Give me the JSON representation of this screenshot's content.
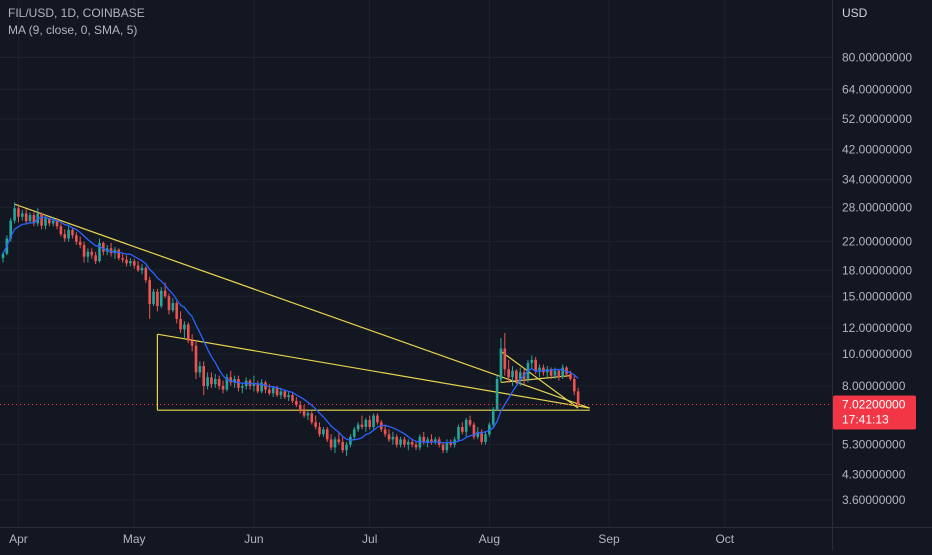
{
  "legend": {
    "symbol_line": "FIL/USD, 1D, COINBASE",
    "indicator_line": "MA (9, close, 0, SMA, 5)"
  },
  "price_axis": {
    "unit": "USD",
    "ticks": [
      "80.00000000",
      "64.00000000",
      "52.00000000",
      "42.00000000",
      "34.00000000",
      "28.00000000",
      "22.00000000",
      "18.00000000",
      "15.00000000",
      "12.00000000",
      "10.00000000",
      "8.00000000",
      "5.30000000",
      "4.30000000",
      "3.60000000"
    ]
  },
  "time_axis": {
    "ticks": [
      "Apr",
      "May",
      "Jun",
      "Jul",
      "Aug",
      "Sep",
      "Oct"
    ]
  },
  "current_price": {
    "value": "7.02200000",
    "countdown": "17:41:13",
    "color": "#f23645"
  },
  "colors": {
    "background": "#131722",
    "up": "#26a69a",
    "down": "#ef5350",
    "ma": "#2962ff",
    "trendline": "#e8d44d",
    "grid": "#1e222d"
  },
  "chart_data": {
    "type": "candlestick",
    "symbol": "FIL/USD",
    "interval": "1D",
    "exchange": "COINBASE",
    "y_scale": "log",
    "ylim": [
      3.4,
      95
    ],
    "xlim": [
      "2021-03-28",
      "2021-10-12"
    ],
    "grid": true,
    "legend_position": "top-left",
    "indicator": {
      "name": "MA (9, close, 0, SMA, 5)",
      "color": "#2962ff"
    },
    "candles": [
      [
        "2021-03-28",
        19.6,
        20.5,
        19.0,
        20.2
      ],
      [
        "2021-03-29",
        20.2,
        23.0,
        20.0,
        22.5
      ],
      [
        "2021-03-30",
        22.5,
        26.0,
        22.0,
        25.5
      ],
      [
        "2021-03-31",
        25.5,
        29.0,
        25.0,
        27.8
      ],
      [
        "2021-04-01",
        27.8,
        28.6,
        25.2,
        26.2
      ],
      [
        "2021-04-02",
        26.2,
        27.5,
        25.5,
        26.8
      ],
      [
        "2021-04-03",
        26.8,
        27.6,
        25.0,
        25.4
      ],
      [
        "2021-04-04",
        25.4,
        27.0,
        25.0,
        26.5
      ],
      [
        "2021-04-05",
        26.5,
        27.0,
        24.5,
        25.0
      ],
      [
        "2021-04-06",
        25.0,
        27.8,
        24.5,
        26.8
      ],
      [
        "2021-04-07",
        26.8,
        27.0,
        24.0,
        24.6
      ],
      [
        "2021-04-08",
        24.6,
        26.5,
        24.0,
        25.9
      ],
      [
        "2021-04-09",
        25.9,
        26.0,
        24.5,
        25.0
      ],
      [
        "2021-04-10",
        25.0,
        26.2,
        24.5,
        25.5
      ],
      [
        "2021-04-11",
        25.5,
        26.0,
        24.0,
        24.5
      ],
      [
        "2021-04-12",
        24.5,
        25.0,
        22.8,
        23.2
      ],
      [
        "2021-04-13",
        23.2,
        24.0,
        22.0,
        22.5
      ],
      [
        "2021-04-14",
        22.5,
        24.5,
        22.0,
        23.9
      ],
      [
        "2021-04-15",
        23.9,
        24.2,
        22.5,
        23.0
      ],
      [
        "2021-04-16",
        23.0,
        23.5,
        21.5,
        22.0
      ],
      [
        "2021-04-17",
        22.0,
        22.8,
        21.0,
        21.5
      ],
      [
        "2021-04-18",
        21.5,
        22.0,
        19.0,
        19.8
      ],
      [
        "2021-04-19",
        19.8,
        21.0,
        19.0,
        20.5
      ],
      [
        "2021-04-20",
        20.5,
        21.0,
        19.5,
        20.0
      ],
      [
        "2021-04-21",
        20.0,
        20.5,
        18.8,
        19.2
      ],
      [
        "2021-04-22",
        19.2,
        22.5,
        19.0,
        21.8
      ],
      [
        "2021-04-23",
        21.8,
        22.0,
        20.0,
        20.5
      ],
      [
        "2021-04-24",
        20.5,
        21.5,
        20.0,
        21.0
      ],
      [
        "2021-04-25",
        21.0,
        21.8,
        19.8,
        20.3
      ],
      [
        "2021-04-26",
        20.3,
        21.2,
        19.5,
        20.8
      ],
      [
        "2021-04-27",
        20.8,
        21.0,
        19.3,
        19.6
      ],
      [
        "2021-04-28",
        19.6,
        20.2,
        19.0,
        19.4
      ],
      [
        "2021-04-29",
        19.4,
        20.0,
        18.5,
        18.9
      ],
      [
        "2021-04-30",
        18.9,
        19.6,
        18.5,
        19.2
      ],
      [
        "2021-05-01",
        19.2,
        19.5,
        18.2,
        18.6
      ],
      [
        "2021-05-02",
        18.6,
        19.2,
        17.8,
        18.0
      ],
      [
        "2021-05-03",
        18.0,
        18.8,
        17.5,
        18.3
      ],
      [
        "2021-05-04",
        18.3,
        18.5,
        16.5,
        16.8
      ],
      [
        "2021-05-05",
        16.8,
        17.2,
        12.8,
        14.2
      ],
      [
        "2021-05-06",
        14.2,
        15.8,
        14.0,
        15.5
      ],
      [
        "2021-05-07",
        15.5,
        15.8,
        13.5,
        14.0
      ],
      [
        "2021-05-08",
        14.0,
        16.0,
        13.8,
        15.6
      ],
      [
        "2021-05-09",
        15.6,
        16.5,
        14.8,
        15.0
      ],
      [
        "2021-05-10",
        15.0,
        15.3,
        13.2,
        13.6
      ],
      [
        "2021-05-11",
        13.6,
        14.8,
        13.4,
        14.3
      ],
      [
        "2021-05-12",
        14.3,
        14.5,
        12.4,
        12.8
      ],
      [
        "2021-05-13",
        12.8,
        13.5,
        11.6,
        11.9
      ],
      [
        "2021-05-14",
        11.9,
        12.6,
        11.2,
        12.3
      ],
      [
        "2021-05-15",
        12.3,
        12.5,
        10.8,
        11.0
      ],
      [
        "2021-05-16",
        11.0,
        11.5,
        10.2,
        10.6
      ],
      [
        "2021-05-17",
        10.6,
        11.0,
        8.4,
        8.8
      ],
      [
        "2021-05-18",
        8.8,
        9.5,
        8.5,
        9.2
      ],
      [
        "2021-05-19",
        9.2,
        9.5,
        7.5,
        8.0
      ],
      [
        "2021-05-20",
        8.0,
        8.8,
        7.8,
        8.5
      ],
      [
        "2021-05-21",
        8.5,
        8.8,
        7.9,
        8.1
      ],
      [
        "2021-05-22",
        8.1,
        8.7,
        7.9,
        8.4
      ],
      [
        "2021-05-23",
        8.4,
        8.6,
        7.8,
        8.0
      ],
      [
        "2021-05-24",
        8.0,
        8.3,
        7.6,
        7.8
      ],
      [
        "2021-05-25",
        7.8,
        8.7,
        7.7,
        8.5
      ],
      [
        "2021-05-26",
        8.5,
        8.9,
        8.0,
        8.2
      ],
      [
        "2021-05-27",
        8.2,
        8.6,
        7.9,
        8.4
      ],
      [
        "2021-05-28",
        8.4,
        8.6,
        7.7,
        7.9
      ],
      [
        "2021-05-29",
        7.9,
        8.2,
        7.6,
        8.0
      ],
      [
        "2021-05-30",
        8.0,
        8.5,
        7.8,
        8.3
      ],
      [
        "2021-05-31",
        8.3,
        8.4,
        7.8,
        8.0
      ],
      [
        "2021-06-01",
        8.0,
        8.6,
        7.7,
        8.1
      ],
      [
        "2021-06-02",
        8.1,
        8.3,
        7.6,
        7.7
      ],
      [
        "2021-06-03",
        7.7,
        8.4,
        7.6,
        8.2
      ],
      [
        "2021-06-04",
        8.2,
        8.3,
        7.6,
        7.8
      ],
      [
        "2021-06-05",
        7.8,
        8.1,
        7.5,
        7.6
      ],
      [
        "2021-06-06",
        7.6,
        8.0,
        7.4,
        7.9
      ],
      [
        "2021-06-07",
        7.9,
        8.0,
        7.4,
        7.5
      ],
      [
        "2021-06-08",
        7.5,
        7.9,
        7.3,
        7.7
      ],
      [
        "2021-06-09",
        7.7,
        7.8,
        7.3,
        7.4
      ],
      [
        "2021-06-10",
        7.4,
        7.7,
        7.2,
        7.5
      ],
      [
        "2021-06-11",
        7.5,
        7.6,
        7.1,
        7.2
      ],
      [
        "2021-06-12",
        7.2,
        7.4,
        6.9,
        7.0
      ],
      [
        "2021-06-13",
        7.0,
        7.2,
        6.6,
        6.8
      ],
      [
        "2021-06-14",
        6.8,
        7.0,
        6.4,
        6.5
      ],
      [
        "2021-06-15",
        6.5,
        6.8,
        6.3,
        6.6
      ],
      [
        "2021-06-16",
        6.6,
        6.7,
        6.1,
        6.2
      ],
      [
        "2021-06-17",
        6.2,
        6.5,
        5.9,
        6.0
      ],
      [
        "2021-06-18",
        6.0,
        6.2,
        5.6,
        5.7
      ],
      [
        "2021-06-19",
        5.7,
        6.0,
        5.6,
        5.9
      ],
      [
        "2021-06-20",
        5.9,
        6.0,
        5.4,
        5.5
      ],
      [
        "2021-06-21",
        5.5,
        5.7,
        5.1,
        5.2
      ],
      [
        "2021-06-22",
        5.2,
        5.6,
        5.0,
        5.5
      ],
      [
        "2021-06-23",
        5.5,
        5.8,
        5.3,
        5.4
      ],
      [
        "2021-06-24",
        5.4,
        5.6,
        5.0,
        5.1
      ],
      [
        "2021-06-25",
        5.1,
        5.4,
        4.9,
        5.3
      ],
      [
        "2021-06-26",
        5.3,
        5.7,
        5.2,
        5.6
      ],
      [
        "2021-06-27",
        5.6,
        6.0,
        5.5,
        5.9
      ],
      [
        "2021-06-28",
        5.9,
        6.2,
        5.8,
        6.1
      ],
      [
        "2021-06-29",
        6.1,
        6.5,
        5.9,
        6.0
      ],
      [
        "2021-06-30",
        6.0,
        6.4,
        5.8,
        6.3
      ],
      [
        "2021-07-01",
        6.3,
        6.5,
        5.9,
        6.0
      ],
      [
        "2021-07-02",
        6.0,
        6.6,
        5.9,
        6.5
      ],
      [
        "2021-07-03",
        6.5,
        6.6,
        6.1,
        6.2
      ],
      [
        "2021-07-04",
        6.2,
        6.3,
        5.8,
        5.9
      ],
      [
        "2021-07-05",
        5.9,
        6.1,
        5.6,
        5.7
      ],
      [
        "2021-07-06",
        5.7,
        5.9,
        5.4,
        5.5
      ],
      [
        "2021-07-07",
        5.5,
        5.8,
        5.3,
        5.6
      ],
      [
        "2021-07-08",
        5.6,
        5.7,
        5.2,
        5.3
      ],
      [
        "2021-07-09",
        5.3,
        5.6,
        5.2,
        5.5
      ],
      [
        "2021-07-10",
        5.5,
        5.6,
        5.2,
        5.3
      ],
      [
        "2021-07-11",
        5.3,
        5.5,
        5.1,
        5.4
      ],
      [
        "2021-07-12",
        5.4,
        5.5,
        5.2,
        5.3
      ],
      [
        "2021-07-13",
        5.3,
        5.4,
        5.1,
        5.2
      ],
      [
        "2021-07-14",
        5.2,
        5.7,
        5.1,
        5.6
      ],
      [
        "2021-07-15",
        5.6,
        5.8,
        5.3,
        5.4
      ],
      [
        "2021-07-16",
        5.4,
        5.6,
        5.2,
        5.5
      ],
      [
        "2021-07-17",
        5.5,
        5.7,
        5.3,
        5.4
      ],
      [
        "2021-07-18",
        5.4,
        5.6,
        5.3,
        5.5
      ],
      [
        "2021-07-19",
        5.5,
        5.6,
        5.2,
        5.3
      ],
      [
        "2021-07-20",
        5.3,
        5.4,
        5.0,
        5.1
      ],
      [
        "2021-07-21",
        5.1,
        5.5,
        5.0,
        5.4
      ],
      [
        "2021-07-22",
        5.4,
        5.5,
        5.2,
        5.3
      ],
      [
        "2021-07-23",
        5.3,
        5.6,
        5.2,
        5.5
      ],
      [
        "2021-07-24",
        5.5,
        6.1,
        5.4,
        6.0
      ],
      [
        "2021-07-25",
        6.0,
        6.2,
        5.7,
        5.8
      ],
      [
        "2021-07-26",
        5.8,
        6.4,
        5.6,
        6.3
      ],
      [
        "2021-07-27",
        6.3,
        6.5,
        6.0,
        6.1
      ],
      [
        "2021-07-28",
        6.1,
        6.2,
        5.5,
        5.6
      ],
      [
        "2021-07-29",
        5.6,
        6.0,
        5.5,
        5.8
      ],
      [
        "2021-07-30",
        5.8,
        5.9,
        5.3,
        5.4
      ],
      [
        "2021-07-31",
        5.4,
        5.8,
        5.3,
        5.7
      ],
      [
        "2021-08-01",
        5.7,
        6.2,
        5.6,
        6.1
      ],
      [
        "2021-08-02",
        6.1,
        6.9,
        6.0,
        6.8
      ],
      [
        "2021-08-03",
        6.8,
        8.6,
        6.7,
        8.4
      ],
      [
        "2021-08-04",
        8.4,
        11.2,
        8.2,
        10.4
      ],
      [
        "2021-08-05",
        10.4,
        11.6,
        8.6,
        9.0
      ],
      [
        "2021-08-06",
        9.0,
        9.6,
        8.2,
        8.5
      ],
      [
        "2021-08-07",
        8.5,
        9.2,
        8.0,
        8.9
      ],
      [
        "2021-08-08",
        8.9,
        9.0,
        8.1,
        8.3
      ],
      [
        "2021-08-09",
        8.3,
        9.1,
        8.0,
        8.8
      ],
      [
        "2021-08-10",
        8.8,
        9.0,
        8.1,
        8.4
      ],
      [
        "2021-08-11",
        8.4,
        9.6,
        8.2,
        9.4
      ],
      [
        "2021-08-12",
        9.4,
        9.9,
        9.0,
        9.6
      ],
      [
        "2021-08-13",
        9.6,
        9.8,
        8.7,
        8.9
      ],
      [
        "2021-08-14",
        8.9,
        9.3,
        8.5,
        9.1
      ],
      [
        "2021-08-15",
        9.1,
        9.3,
        8.6,
        8.8
      ],
      [
        "2021-08-16",
        8.8,
        9.2,
        8.5,
        9.0
      ],
      [
        "2021-08-17",
        9.0,
        9.1,
        8.4,
        8.6
      ],
      [
        "2021-08-18",
        8.6,
        9.1,
        8.4,
        8.9
      ],
      [
        "2021-08-19",
        8.9,
        9.0,
        8.3,
        8.5
      ],
      [
        "2021-08-20",
        8.5,
        9.3,
        8.4,
        9.1
      ],
      [
        "2021-08-21",
        9.1,
        9.2,
        8.5,
        8.7
      ],
      [
        "2021-08-22",
        8.7,
        8.9,
        8.3,
        8.4
      ],
      [
        "2021-08-23",
        8.4,
        8.6,
        7.5,
        7.7
      ],
      [
        "2021-08-24",
        7.7,
        7.9,
        6.9,
        7.022
      ]
    ],
    "trendlines": [
      {
        "from": [
          "2021-03-31",
          28.6
        ],
        "to": [
          "2021-08-27",
          6.85
        ]
      },
      {
        "from": [
          "2021-05-07",
          11.5
        ],
        "to": [
          "2021-08-27",
          6.85
        ]
      },
      {
        "from": [
          "2021-05-07",
          6.75
        ],
        "to": [
          "2021-08-27",
          6.75
        ]
      },
      {
        "from": [
          "2021-05-07",
          11.5
        ],
        "to": [
          "2021-05-07",
          6.75
        ]
      },
      {
        "from": [
          "2021-08-04",
          10.2
        ],
        "to": [
          "2021-08-24",
          6.85
        ]
      },
      {
        "from": [
          "2021-08-04",
          8.2
        ],
        "to": [
          "2021-08-22",
          8.6
        ]
      },
      {
        "from": [
          "2021-08-04",
          10.2
        ],
        "to": [
          "2021-08-04",
          8.2
        ]
      }
    ]
  }
}
